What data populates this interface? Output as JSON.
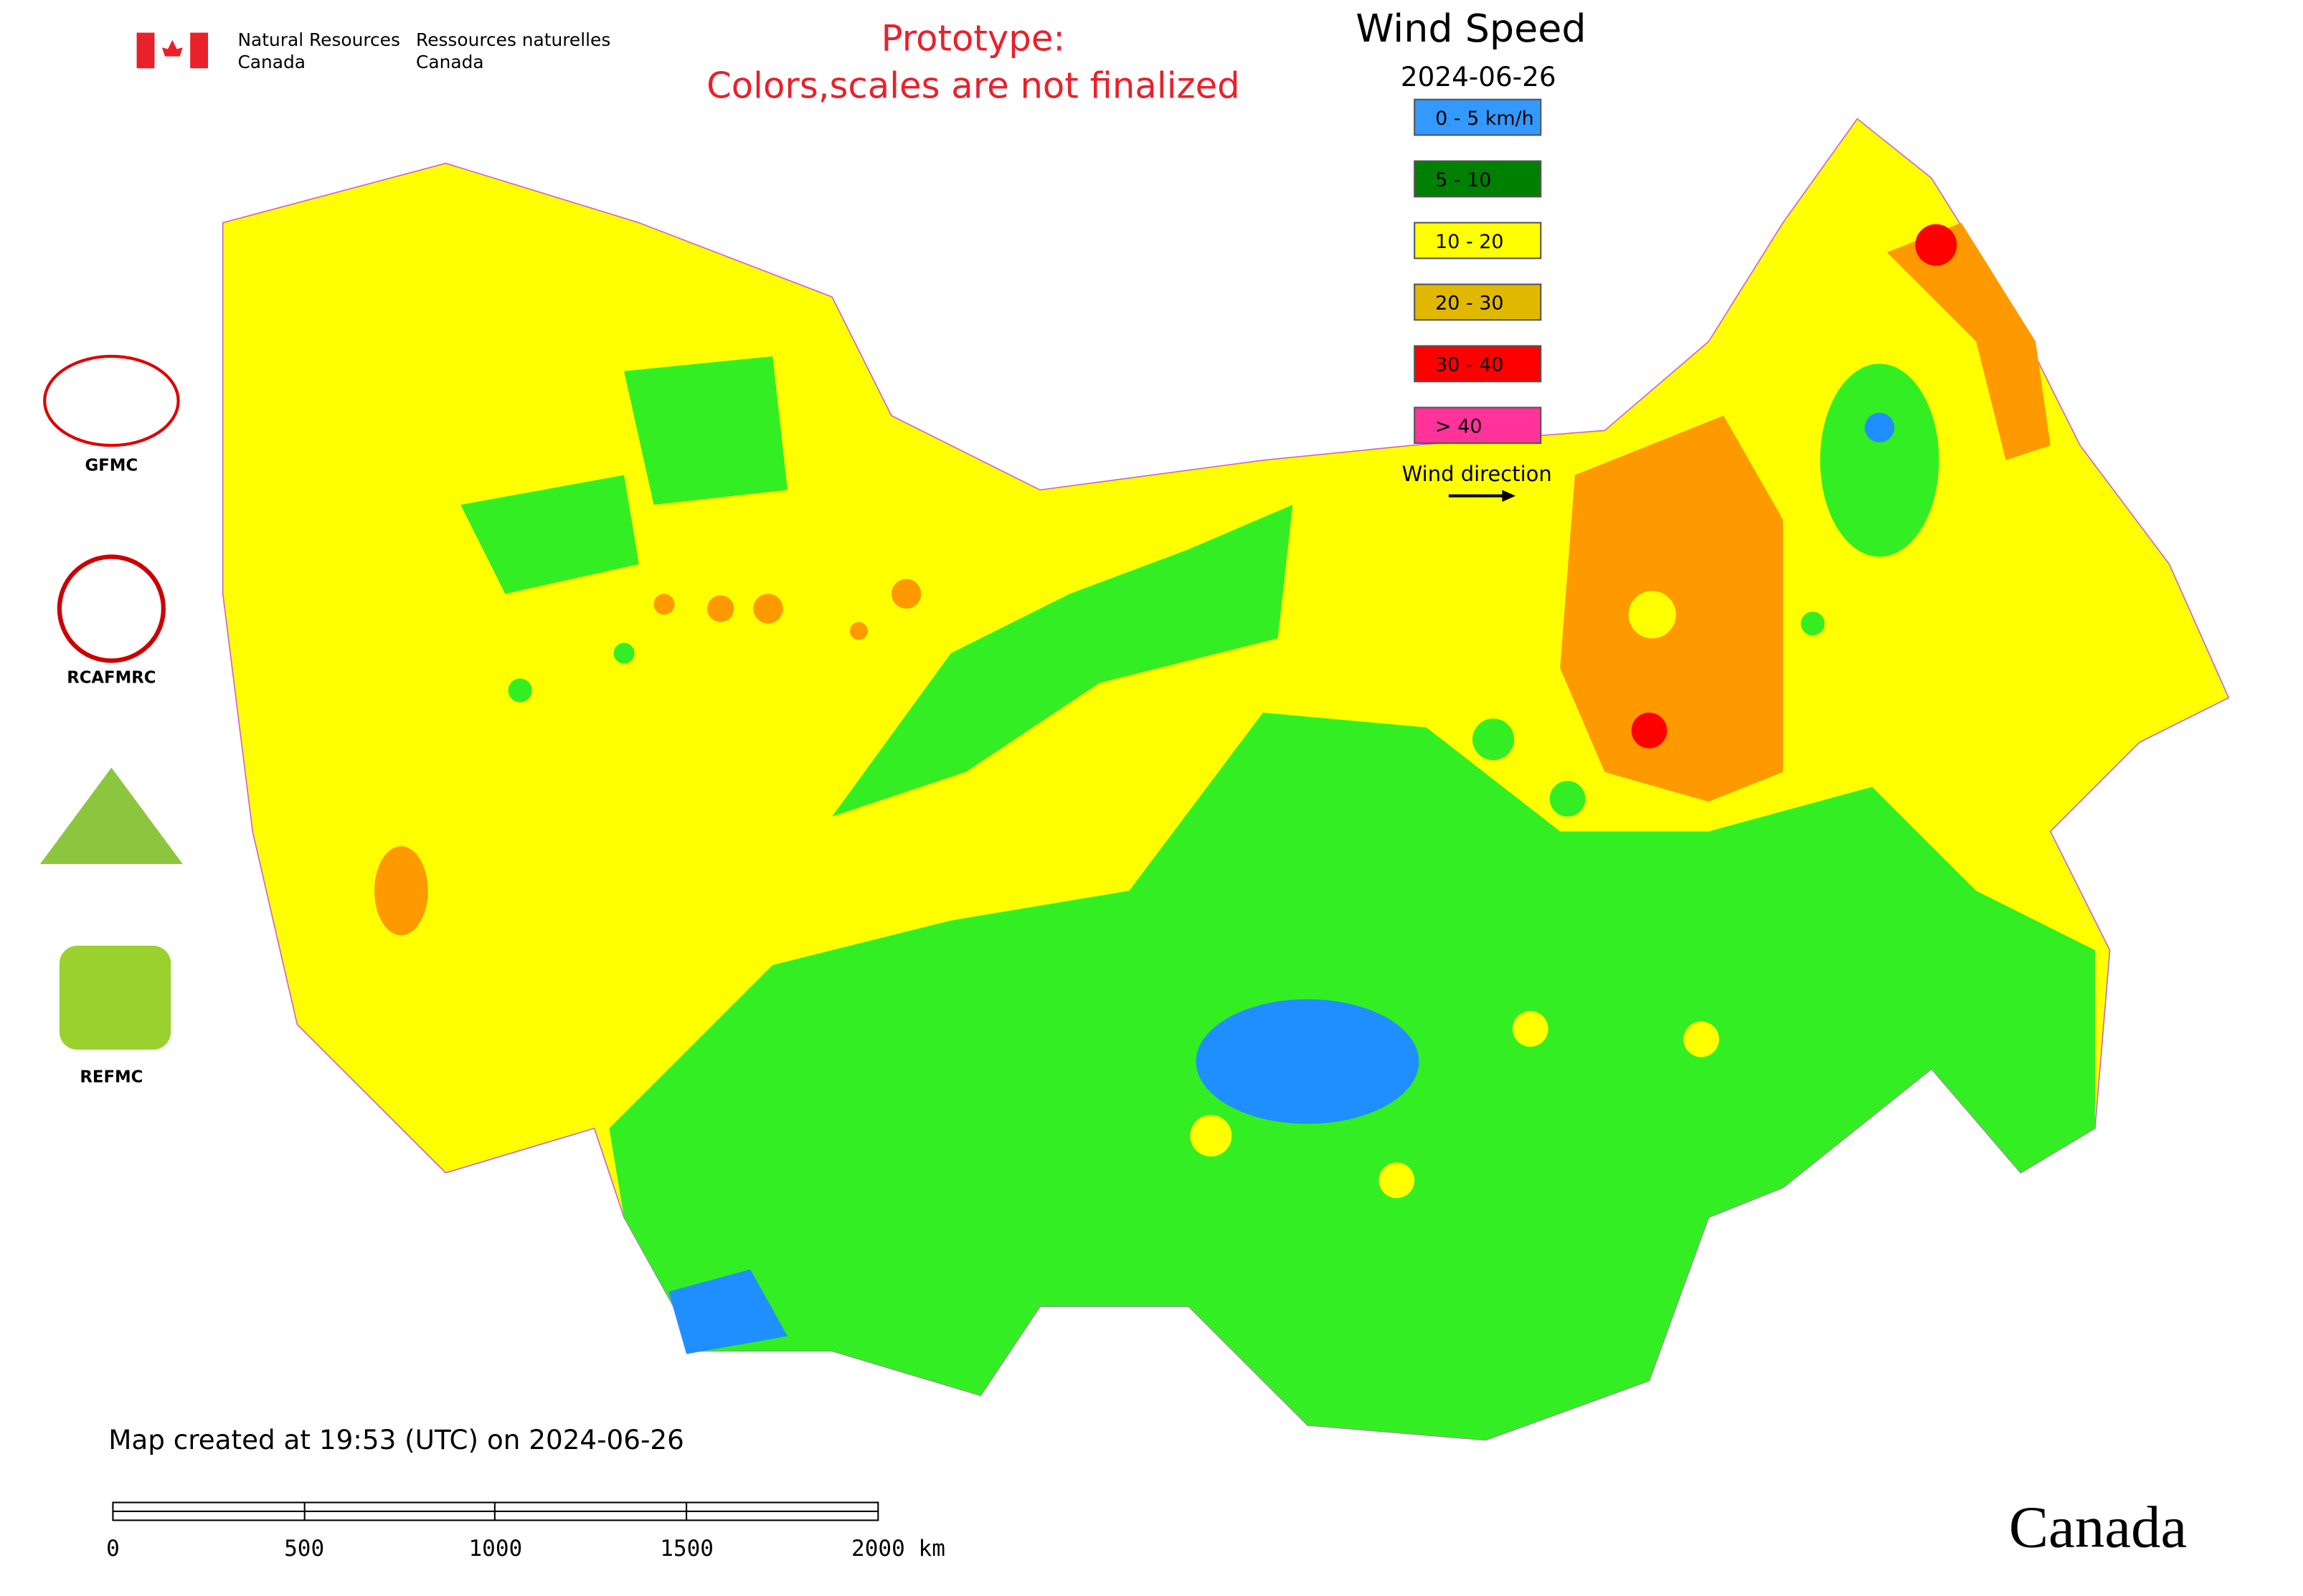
{
  "header": {
    "agency_en": [
      "Natural Resources",
      "Canada"
    ],
    "agency_fr": [
      "Ressources naturelles",
      "Canada"
    ],
    "notice": [
      "Prototype:",
      "Colors,scales are not finalized"
    ]
  },
  "legend": {
    "title": "Wind Speed",
    "date": "2024-06-26",
    "items": [
      {
        "label": "0 - 5 km/h",
        "color": "#3399ff"
      },
      {
        "label": "5 - 10",
        "color": "#008000"
      },
      {
        "label": "10 - 20",
        "color": "#ffff00"
      },
      {
        "label": "20 - 30",
        "color": "#e0b800"
      },
      {
        "label": "30 - 40",
        "color": "#ff0000"
      },
      {
        "label": "> 40",
        "color": "#ff3399"
      }
    ],
    "direction": "Wind direction"
  },
  "logos": [
    "GFMC",
    "RCAFMRC",
    "REFMC"
  ],
  "footer": {
    "created": "Map created at 19:53 (UTC) on 2024-06-26",
    "scale": [
      "0",
      "500",
      "1000",
      "1500",
      "2000 km"
    ],
    "wordmark": "Canada"
  }
}
